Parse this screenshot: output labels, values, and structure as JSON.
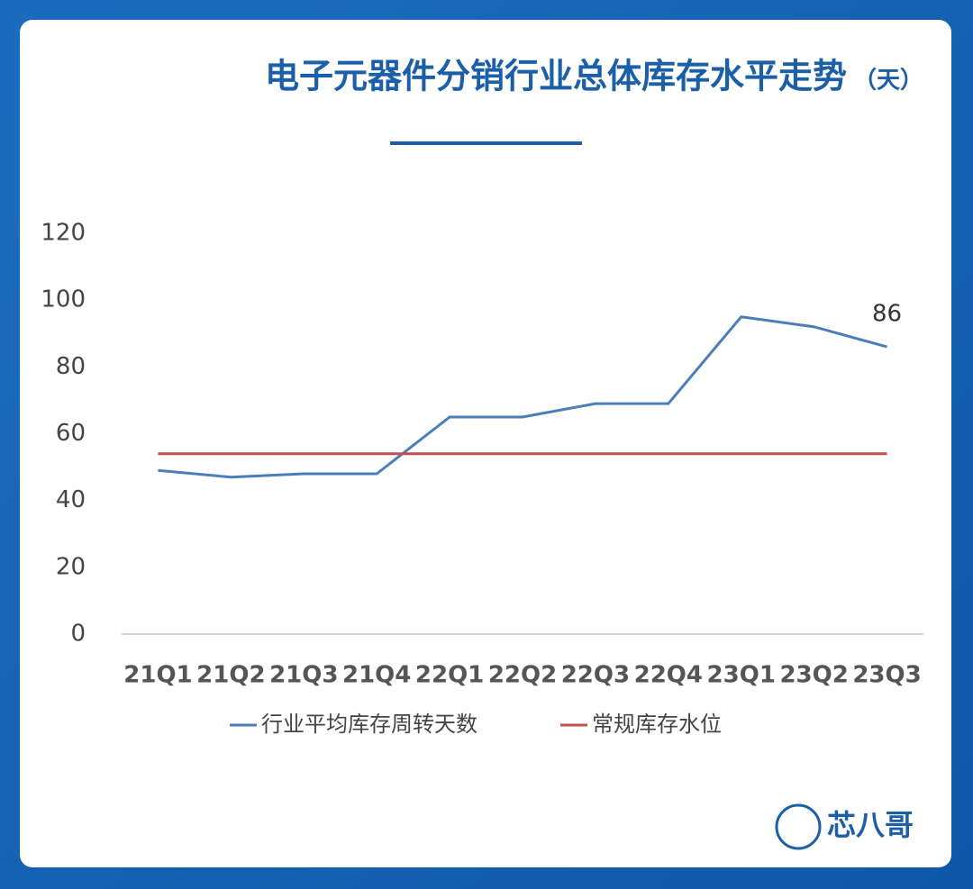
{
  "chart_data": {
    "type": "line",
    "title": "电子元器件分销行业总体库存水平走势",
    "subtitle": "（天）",
    "categories": [
      "21Q1",
      "21Q2",
      "21Q3",
      "21Q4",
      "22Q1",
      "22Q2",
      "22Q3",
      "22Q4",
      "23Q1",
      "23Q2",
      "23Q3"
    ],
    "series": [
      {
        "name": "行业平均库存周转天数",
        "color": "#4a7ebb",
        "values": [
          49,
          47,
          48,
          48,
          65,
          65,
          69,
          69,
          95,
          92,
          86
        ]
      },
      {
        "name": "常规库存水位",
        "color": "#c0504d",
        "values": [
          54,
          54,
          54,
          54,
          54,
          54,
          54,
          54,
          54,
          54,
          54
        ]
      }
    ],
    "ylim": [
      0,
      120
    ],
    "yticks": [
      0,
      20,
      40,
      60,
      80,
      100,
      120
    ],
    "grid": false,
    "legend": "bottom"
  },
  "logo": "芯八哥"
}
